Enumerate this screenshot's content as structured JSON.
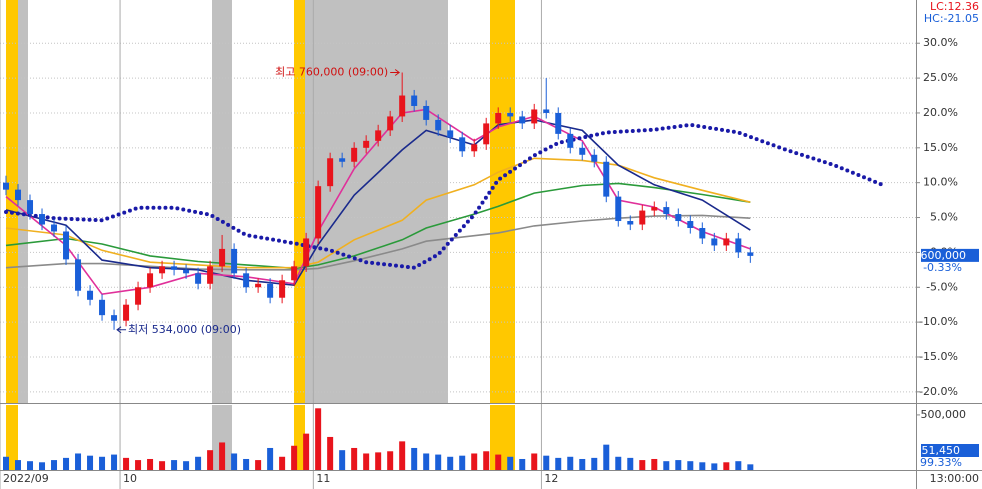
{
  "chart_data": {
    "type": "candlestick",
    "xlim": [
      -0.5,
      75.8
    ],
    "xticks": [
      {
        "value": -0.5,
        "label": "2022/09"
      },
      {
        "value": 9.5,
        "label": "10"
      },
      {
        "value": 25.6,
        "label": "11"
      },
      {
        "value": 44.6,
        "label": "12"
      }
    ],
    "ylim": [
      -21.6,
      36.2
    ],
    "yticks": [
      {
        "value": 30,
        "label": "30.0%"
      },
      {
        "value": 25,
        "label": "25.0%"
      },
      {
        "value": 20,
        "label": "20.0%"
      },
      {
        "value": 15,
        "label": "15.0%"
      },
      {
        "value": 10,
        "label": "10.0%"
      },
      {
        "value": 5,
        "label": "5.0%"
      },
      {
        "value": 0,
        "label": "0.0%"
      },
      {
        "value": -5,
        "label": "-5.0%"
      },
      {
        "value": -10,
        "label": "-10.0%"
      },
      {
        "value": -15,
        "label": "-15.0%"
      },
      {
        "value": -20,
        "label": "-20.0%"
      }
    ],
    "grid": true,
    "up_color": "#e8141c",
    "down_color": "#1a5fd8",
    "open": [
      10.0,
      9.0,
      7.5,
      5.5,
      4.0,
      3.0,
      -1.0,
      -5.5,
      -6.8,
      -9.0,
      -9.8,
      -7.5,
      -5.0,
      -3.0,
      -2.0,
      -2.5,
      -3.0,
      -4.5,
      -2.0,
      0.5,
      -3.0,
      -5.0,
      -4.5,
      -6.5,
      -4.0,
      -2.0,
      2.0,
      9.5,
      13.5,
      13.0,
      15.0,
      16.0,
      17.5,
      19.5,
      22.5,
      21.0,
      19.0,
      17.5,
      16.5,
      14.5,
      15.5,
      18.5,
      20.0,
      19.5,
      18.5,
      20.5,
      20.0,
      17.0,
      15.0,
      14.0,
      13.0,
      8.0,
      4.5,
      4.0,
      6.0,
      6.5,
      5.5,
      4.5,
      3.5,
      2.0,
      1.0,
      2.0,
      0.0
    ],
    "high": [
      11.0,
      9.8,
      8.3,
      6.3,
      4.8,
      3.8,
      -0.2,
      -4.7,
      -6.0,
      -8.2,
      -6.7,
      -4.2,
      -2.2,
      -1.2,
      -1.2,
      -1.7,
      -2.2,
      -1.2,
      2.5,
      1.3,
      -2.2,
      -3.7,
      -3.7,
      -3.2,
      -1.2,
      2.8,
      10.3,
      14.3,
      14.3,
      15.8,
      16.8,
      18.3,
      20.3,
      25.8,
      23.3,
      21.8,
      19.8,
      18.3,
      17.3,
      16.3,
      19.3,
      20.8,
      20.8,
      20.3,
      21.3,
      25.0,
      20.8,
      17.8,
      15.8,
      14.8,
      13.8,
      8.8,
      5.3,
      6.8,
      7.3,
      7.3,
      6.3,
      5.3,
      4.3,
      2.8,
      2.8,
      2.8,
      0.8
    ],
    "low": [
      8.2,
      6.7,
      4.7,
      3.2,
      2.2,
      -1.8,
      -6.3,
      -7.6,
      -9.8,
      -11.1,
      -10.6,
      -8.3,
      -5.8,
      -3.8,
      -3.3,
      -3.8,
      -5.3,
      -5.3,
      -2.8,
      -3.8,
      -5.8,
      -5.8,
      -7.3,
      -7.3,
      -4.8,
      -2.8,
      1.2,
      8.7,
      12.2,
      12.2,
      14.2,
      15.2,
      16.7,
      18.7,
      20.2,
      18.2,
      16.7,
      15.7,
      13.7,
      13.7,
      14.7,
      17.7,
      18.7,
      17.7,
      17.7,
      19.2,
      16.2,
      14.2,
      13.2,
      12.2,
      7.2,
      3.7,
      3.2,
      3.2,
      5.2,
      4.7,
      3.7,
      2.7,
      1.2,
      0.2,
      0.2,
      -0.8,
      -1.5
    ],
    "close": [
      9.0,
      7.5,
      5.5,
      4.0,
      3.0,
      -1.0,
      -5.5,
      -6.8,
      -9.0,
      -9.8,
      -7.5,
      -5.0,
      -3.0,
      -2.0,
      -2.5,
      -3.0,
      -4.5,
      -2.0,
      0.5,
      -3.0,
      -5.0,
      -4.5,
      -6.5,
      -4.0,
      -2.0,
      2.0,
      9.5,
      13.5,
      13.0,
      15.0,
      16.0,
      17.5,
      19.5,
      22.5,
      21.0,
      19.0,
      17.5,
      16.5,
      14.5,
      15.5,
      18.5,
      20.0,
      19.5,
      18.5,
      20.5,
      20.0,
      17.0,
      15.0,
      14.0,
      13.0,
      8.0,
      4.5,
      4.0,
      6.0,
      6.5,
      5.5,
      4.5,
      3.5,
      2.0,
      1.0,
      2.0,
      0.0,
      -0.5
    ],
    "line_x": [
      0,
      5,
      8,
      12,
      16,
      20,
      24,
      26,
      29,
      33,
      35,
      39,
      41,
      44,
      48,
      51,
      54,
      58,
      62
    ],
    "lines": [
      {
        "color": "#8a8a8a",
        "values": [
          -2.2,
          -1.6,
          -1.6,
          -2.0,
          -2.4,
          -2.5,
          -2.5,
          -2.3,
          -1.2,
          0.5,
          1.6,
          2.4,
          2.8,
          3.8,
          4.5,
          4.9,
          5.2,
          5.3,
          4.9
        ]
      },
      {
        "color": "#2a9a3a",
        "values": [
          1.0,
          2.0,
          1.2,
          -0.5,
          -1.3,
          -1.8,
          -2.3,
          -1.8,
          -0.5,
          1.8,
          3.5,
          5.5,
          6.6,
          8.5,
          9.6,
          9.9,
          9.3,
          8.3,
          7.2
        ]
      },
      {
        "color": "#f0b020",
        "values": [
          3.5,
          2.5,
          0.3,
          -1.4,
          -1.8,
          -2.2,
          -2.2,
          -1.4,
          1.8,
          4.6,
          7.5,
          9.7,
          11.5,
          13.5,
          13.2,
          12.5,
          10.7,
          8.9,
          7.2
        ]
      },
      {
        "color": "#1a2a8c",
        "values": [
          6.1,
          3.9,
          -1.1,
          -2.2,
          -2.5,
          -4.0,
          -4.7,
          1.1,
          8.2,
          14.7,
          17.5,
          15.4,
          18.3,
          19.0,
          17.5,
          12.5,
          9.7,
          7.5,
          3.2
        ]
      },
      {
        "color": "#e0309a",
        "values": [
          8.0,
          1.0,
          -6.0,
          -5.0,
          -3.0,
          -3.5,
          -4.5,
          3.0,
          12.0,
          20.0,
          20.5,
          16.0,
          18.0,
          19.5,
          16.0,
          7.5,
          6.5,
          3.0,
          0.5
        ]
      }
    ],
    "sar": {
      "color": "#1a1aa8",
      "x": [
        0,
        4,
        8,
        11,
        14,
        17,
        20,
        24,
        27,
        30,
        34,
        36,
        39,
        41,
        44,
        46,
        50,
        54,
        57,
        61,
        65,
        69,
        73
      ],
      "values": [
        5.8,
        4.9,
        4.6,
        6.4,
        6.4,
        5.4,
        2.5,
        1.3,
        0.3,
        -1.4,
        -2.2,
        -0.3,
        5.4,
        10.4,
        13.9,
        15.7,
        17.2,
        17.6,
        18.3,
        17.2,
        14.7,
        12.5,
        9.7
      ]
    },
    "volume": {
      "ylim": [
        0,
        590000
      ],
      "yticks": [
        {
          "value": 500000,
          "label": "500,000"
        }
      ],
      "values": [
        120000,
        90000,
        80000,
        70000,
        90000,
        110000,
        150000,
        130000,
        120000,
        140000,
        110000,
        90000,
        100000,
        80000,
        90000,
        80000,
        120000,
        180000,
        250000,
        150000,
        100000,
        90000,
        200000,
        120000,
        220000,
        330000,
        560000,
        300000,
        180000,
        200000,
        150000,
        160000,
        170000,
        260000,
        200000,
        150000,
        140000,
        120000,
        130000,
        150000,
        170000,
        140000,
        120000,
        100000,
        150000,
        130000,
        110000,
        120000,
        100000,
        110000,
        230000,
        120000,
        110000,
        90000,
        100000,
        80000,
        90000,
        80000,
        70000,
        60000,
        70000,
        80000,
        51450
      ],
      "current_label": "51,450",
      "ratio_label": "99.33%"
    },
    "high_label": "최고 760,000 (09:00)",
    "low_label": "최저 534,000 (09:00)",
    "lc_label": "LC:12.36",
    "hc_label": "HC:-21.05",
    "price_label": "600,000",
    "change_label": "-0.33%",
    "time_label": "13:00:00"
  }
}
